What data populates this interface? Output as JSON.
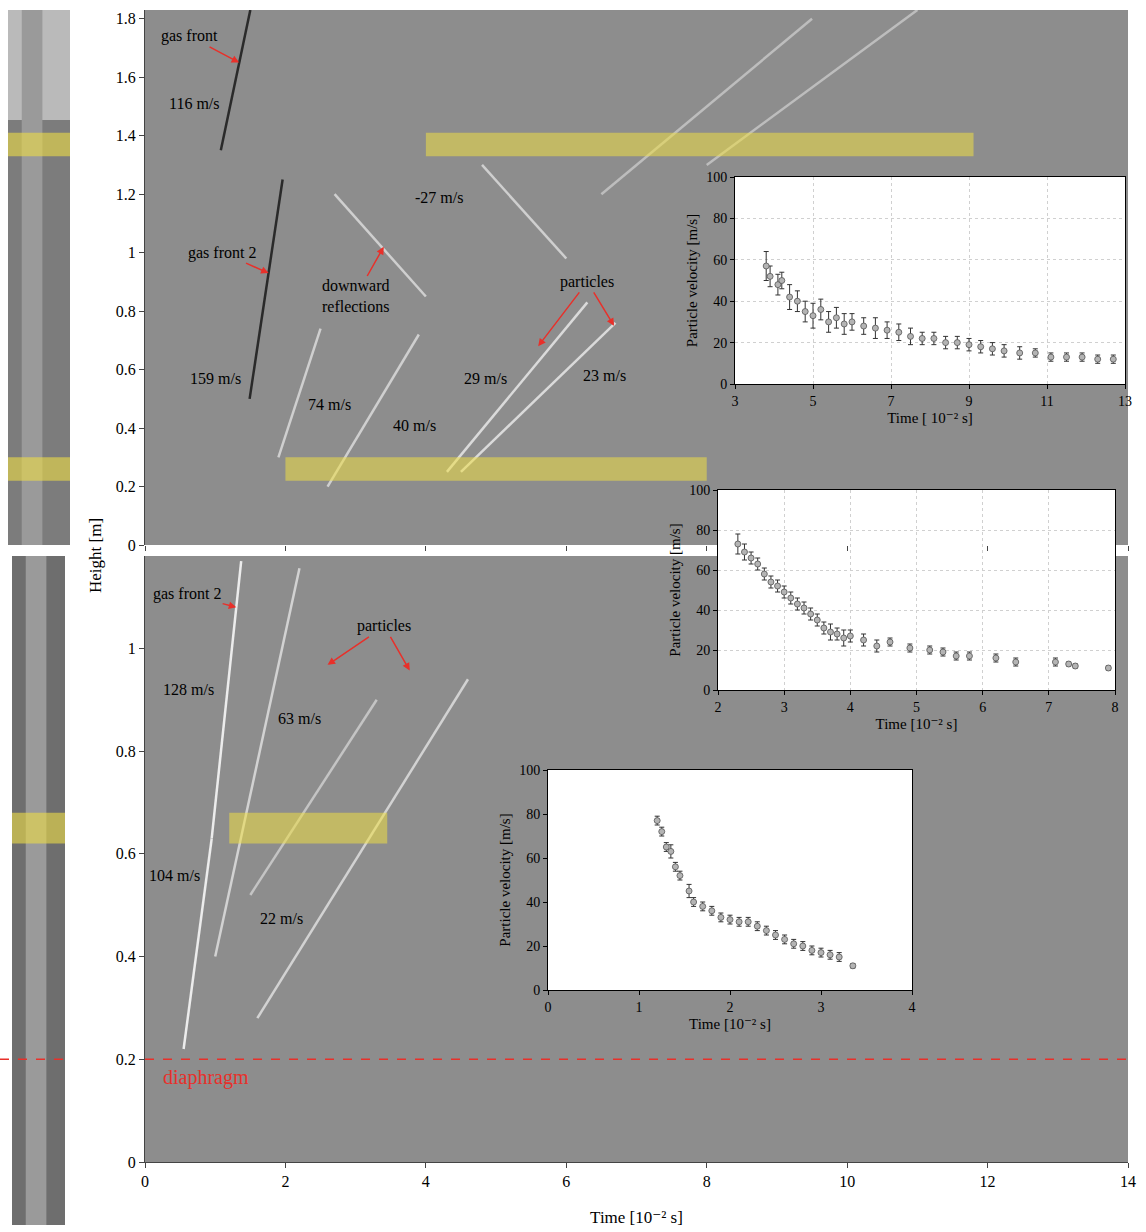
{
  "figure": {
    "ylabel": "Height [m]",
    "xlabel": "Time [10⁻² s]"
  },
  "chart_data": [
    {
      "type": "line",
      "xlim": [
        0,
        14
      ],
      "xticks": [
        0,
        2,
        4,
        6,
        8,
        10,
        12,
        14
      ],
      "ylim": [
        0,
        1.83
      ],
      "yticks": [
        0,
        0.2,
        0.4,
        0.6,
        0.8,
        1,
        1.2,
        1.4,
        1.6,
        1.8
      ],
      "tick_labels": "y",
      "series": [
        {
          "x": [
            1.08,
            1.5
          ],
          "values": [
            1.35,
            1.83
          ],
          "color": "#2a2a2a"
        },
        {
          "x": [
            1.49,
            1.96
          ],
          "values": [
            0.5,
            1.25
          ],
          "color": "#2a2a2a"
        },
        {
          "x": [
            1.9,
            2.5
          ],
          "values": [
            0.3,
            0.74
          ],
          "color": "#cfcfcf"
        },
        {
          "x": [
            2.6,
            3.9
          ],
          "values": [
            0.2,
            0.72
          ],
          "color": "#cfcfcf"
        },
        {
          "x": [
            2.7,
            4.0
          ],
          "values": [
            1.2,
            0.85
          ],
          "color": "#cfcfcf"
        },
        {
          "x": [
            4.8,
            6.0
          ],
          "values": [
            1.3,
            0.98
          ],
          "color": "#cfcfcf"
        },
        {
          "x": [
            4.3,
            6.3
          ],
          "values": [
            0.25,
            0.83
          ],
          "color": "#dadada"
        },
        {
          "x": [
            4.5,
            6.7
          ],
          "values": [
            0.25,
            0.76
          ],
          "color": "#dadada"
        },
        {
          "x": [
            6.5,
            9.5
          ],
          "values": [
            1.2,
            1.8
          ],
          "color": "#bdbdbd"
        },
        {
          "x": [
            8,
            11
          ],
          "values": [
            1.3,
            1.83
          ],
          "color": "#bdbdbd"
        }
      ],
      "highlights": [
        {
          "x": [
            4,
            11.8
          ],
          "y": [
            1.33,
            1.41
          ]
        },
        {
          "x": [
            2,
            8
          ],
          "y": [
            0.22,
            0.3
          ]
        }
      ],
      "annotations": [
        {
          "text": "gas front",
          "x": 0.64,
          "y": 1.74,
          "arrows": [
            [
              1.34,
              1.65
            ]
          ]
        },
        {
          "text": "116 m/s",
          "x": 0.7,
          "y": 1.51
        },
        {
          "text": "-27 m/s",
          "x": 4.19,
          "y": 1.19
        },
        {
          "text": "gas front 2",
          "x": 1.1,
          "y": 1.0,
          "arrows": [
            [
              1.76,
              0.93
            ]
          ]
        },
        {
          "text": [
            "downward",
            "reflections"
          ],
          "x": 3.0,
          "y": 0.85,
          "arrows": [
            [
              3.4,
              1.02
            ]
          ]
        },
        {
          "text": "particles",
          "x": 6.3,
          "y": 0.9,
          "arrows": [
            [
              5.6,
              0.68
            ],
            [
              6.68,
              0.75
            ]
          ]
        },
        {
          "text": "159 m/s",
          "x": 1.0,
          "y": 0.57
        },
        {
          "text": "74 m/s",
          "x": 2.63,
          "y": 0.48
        },
        {
          "text": "40 m/s",
          "x": 3.84,
          "y": 0.41
        },
        {
          "text": "29 m/s",
          "x": 4.85,
          "y": 0.57
        },
        {
          "text": "23 m/s",
          "x": 6.55,
          "y": 0.58
        }
      ]
    },
    {
      "type": "line",
      "xlim": [
        0,
        14
      ],
      "xticks": [
        0,
        2,
        4,
        6,
        8,
        10,
        12,
        14
      ],
      "ylim": [
        0,
        1.18
      ],
      "yticks": [
        0,
        0.2,
        0.4,
        0.6,
        0.8,
        1
      ],
      "series": [
        {
          "x": [
            0.55,
            0.95
          ],
          "values": [
            0.22,
            0.63
          ],
          "color": "#ececec"
        },
        {
          "x": [
            0.95,
            1.37
          ],
          "values": [
            0.63,
            1.17
          ],
          "color": "#ececec"
        },
        {
          "x": [
            1.0,
            2.2
          ],
          "values": [
            0.4,
            1.156
          ],
          "color": "#d2d2d2"
        },
        {
          "x": [
            1.6,
            4.6
          ],
          "values": [
            0.28,
            0.94
          ],
          "color": "#d2d2d2"
        },
        {
          "x": [
            1.5,
            3.3
          ],
          "values": [
            0.52,
            0.9
          ],
          "color": "#c4c4c4"
        }
      ],
      "highlights": [
        {
          "x": [
            1.2,
            3.45
          ],
          "y": [
            0.62,
            0.68
          ]
        }
      ],
      "reference_lines": [
        {
          "y": 0.2,
          "color": "#e8302a",
          "line_style": "dashed"
        }
      ],
      "annotations": [
        {
          "text": "gas front 2",
          "x": 0.6,
          "y": 1.106,
          "arrows": [
            [
              1.3,
              1.08
            ]
          ]
        },
        {
          "text": "particles",
          "x": 3.41,
          "y": 1.043,
          "arrows": [
            [
              2.6,
              0.968
            ],
            [
              3.77,
              0.957
            ]
          ]
        },
        {
          "text": "128 m/s",
          "x": 0.62,
          "y": 0.92
        },
        {
          "text": "63 m/s",
          "x": 2.2,
          "y": 0.864
        },
        {
          "text": "104 m/s",
          "x": 0.42,
          "y": 0.557
        },
        {
          "text": "22 m/s",
          "x": 1.95,
          "y": 0.475
        },
        {
          "text": "diaphragm",
          "x": 0.87,
          "y": 0.165,
          "color": "#e8302a"
        }
      ]
    },
    {
      "type": "scatter",
      "marker": "circle",
      "color": "#b4b4b4",
      "grid": true,
      "xlabel": "Time [ 10⁻² s]",
      "ylabel": "Particle velocity [m/s]",
      "xlim": [
        3,
        13
      ],
      "xticks": [
        3,
        5,
        7,
        9,
        11,
        13
      ],
      "ylim": [
        0,
        100
      ],
      "yticks": [
        0,
        20,
        40,
        60,
        80,
        100
      ],
      "x": [
        3.8,
        3.9,
        4.1,
        4.2,
        4.4,
        4.6,
        4.8,
        5.0,
        5.2,
        5.4,
        5.6,
        5.8,
        6.0,
        6.3,
        6.6,
        6.9,
        7.2,
        7.5,
        7.8,
        8.1,
        8.4,
        8.7,
        9.0,
        9.3,
        9.6,
        9.9,
        10.3,
        10.7,
        11.1,
        11.5,
        11.9,
        12.3,
        12.7
      ],
      "values": [
        57,
        52,
        48,
        50,
        42,
        40,
        35,
        33,
        36,
        30,
        32,
        29,
        30,
        28,
        27,
        26,
        25,
        23,
        22,
        22,
        20,
        20,
        19,
        18,
        17,
        16,
        15,
        15,
        13,
        13,
        13,
        12,
        12
      ],
      "errors": [
        7,
        5,
        5,
        4,
        6,
        5,
        5,
        6,
        5,
        5,
        5,
        5,
        4,
        4,
        5,
        4,
        4,
        4,
        3,
        3,
        3,
        3,
        3,
        3,
        3,
        3,
        3,
        2,
        2,
        2,
        2,
        2,
        2
      ]
    },
    {
      "type": "scatter",
      "marker": "circle",
      "color": "#b4b4b4",
      "grid": true,
      "xlabel": "Time [10⁻² s]",
      "ylabel": "Particle velocity [m/s]",
      "xlim": [
        2,
        8
      ],
      "xticks": [
        2,
        3,
        4,
        5,
        6,
        7,
        8
      ],
      "ylim": [
        0,
        100
      ],
      "yticks": [
        0,
        20,
        40,
        60,
        80,
        100
      ],
      "x": [
        2.3,
        2.4,
        2.5,
        2.6,
        2.7,
        2.8,
        2.9,
        3.0,
        3.1,
        3.2,
        3.3,
        3.4,
        3.5,
        3.6,
        3.7,
        3.8,
        3.9,
        4.0,
        4.2,
        4.4,
        4.6,
        4.9,
        5.2,
        5.4,
        5.6,
        5.8,
        6.2,
        6.5,
        7.1,
        7.3,
        7.4,
        7.9
      ],
      "values": [
        73,
        69,
        66,
        63,
        58,
        54,
        52,
        49,
        46,
        43,
        41,
        38,
        35,
        31,
        29,
        28,
        26,
        27,
        25,
        22,
        24,
        21,
        20,
        19,
        17,
        17,
        16,
        14,
        14,
        13,
        12,
        11
      ],
      "errors": [
        5,
        4,
        3,
        3,
        3,
        3,
        3,
        3,
        3,
        3,
        3,
        3,
        3,
        3,
        4,
        3,
        4,
        3,
        3,
        3,
        2,
        2,
        2,
        2,
        2,
        2,
        2,
        2,
        2,
        1,
        1,
        1
      ]
    },
    {
      "type": "scatter",
      "marker": "circle",
      "color": "#b4b4b4",
      "grid": false,
      "xlabel": "Time [10⁻² s]",
      "ylabel": "Particle velocity [m/s]",
      "xlim": [
        0,
        4
      ],
      "xticks": [
        0,
        1,
        2,
        3,
        4
      ],
      "ylim": [
        0,
        100
      ],
      "yticks": [
        0,
        20,
        40,
        60,
        80,
        100
      ],
      "x": [
        1.2,
        1.25,
        1.3,
        1.35,
        1.4,
        1.45,
        1.55,
        1.6,
        1.7,
        1.8,
        1.9,
        2.0,
        2.1,
        2.2,
        2.3,
        2.4,
        2.5,
        2.6,
        2.7,
        2.8,
        2.9,
        3.0,
        3.1,
        3.2,
        3.35
      ],
      "values": [
        77,
        72,
        65,
        63,
        56,
        52,
        45,
        40,
        38,
        36,
        33,
        32,
        31,
        31,
        29,
        27,
        25,
        23,
        21,
        20,
        18,
        17,
        16,
        15,
        11
      ],
      "errors": [
        2,
        2,
        2,
        3,
        2,
        2,
        3,
        2,
        2,
        2,
        2,
        2,
        2,
        2,
        2,
        2,
        2,
        2,
        2,
        2,
        2,
        2,
        2,
        2,
        1
      ]
    }
  ]
}
